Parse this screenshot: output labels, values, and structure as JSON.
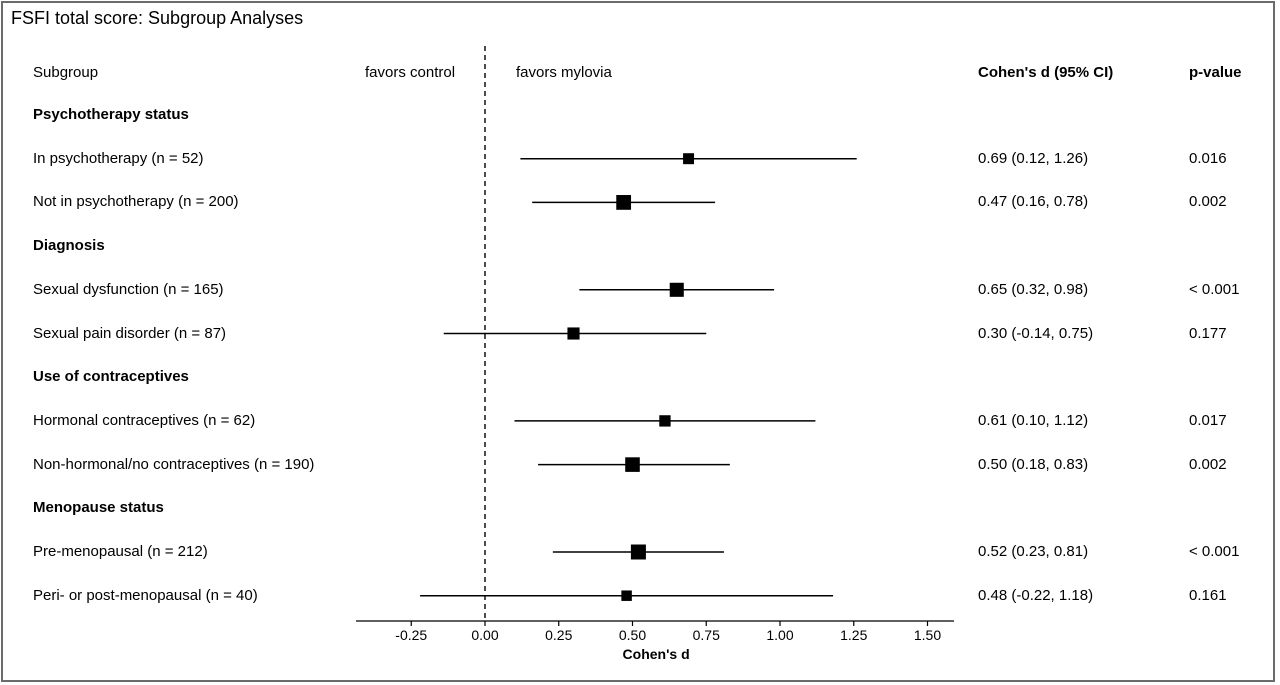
{
  "title": "FSFI total score: Subgroup Analyses",
  "headers": {
    "subgroup": "Subgroup",
    "favors_left": "favors control",
    "favors_right": "favors mylovia",
    "estimate": "Cohen's d (95% CI)",
    "pvalue": "p-value"
  },
  "chart_data": {
    "type": "forest",
    "xlabel": "Cohen's d",
    "xlim": [
      -0.45,
      1.6
    ],
    "reference_line": 0,
    "ticks": [
      -0.25,
      0.0,
      0.25,
      0.5,
      0.75,
      1.0,
      1.25,
      1.5
    ],
    "tick_labels": [
      "-0.25",
      "0.00",
      "0.25",
      "0.50",
      "0.75",
      "1.00",
      "1.25",
      "1.50"
    ],
    "rows": [
      {
        "kind": "group",
        "label": "Psychotherapy status"
      },
      {
        "kind": "item",
        "label": "In psychotherapy (n = 52)",
        "n": 52,
        "d": 0.69,
        "lo": 0.12,
        "hi": 1.26,
        "ci_text": "0.69 (0.12, 1.26)",
        "p": "0.016"
      },
      {
        "kind": "item",
        "label": "Not in psychotherapy (n = 200)",
        "n": 200,
        "d": 0.47,
        "lo": 0.16,
        "hi": 0.78,
        "ci_text": "0.47 (0.16, 0.78)",
        "p": "0.002"
      },
      {
        "kind": "group",
        "label": "Diagnosis"
      },
      {
        "kind": "item",
        "label": "Sexual dysfunction (n = 165)",
        "n": 165,
        "d": 0.65,
        "lo": 0.32,
        "hi": 0.98,
        "ci_text": "0.65 (0.32, 0.98)",
        "p": "< 0.001"
      },
      {
        "kind": "item",
        "label": "Sexual pain disorder (n = 87)",
        "n": 87,
        "d": 0.3,
        "lo": -0.14,
        "hi": 0.75,
        "ci_text": "0.30 (-0.14, 0.75)",
        "p": "0.177"
      },
      {
        "kind": "group",
        "label": "Use of contraceptives"
      },
      {
        "kind": "item",
        "label": "Hormonal contraceptives (n = 62)",
        "n": 62,
        "d": 0.61,
        "lo": 0.1,
        "hi": 1.12,
        "ci_text": "0.61 (0.10, 1.12)",
        "p": "0.017"
      },
      {
        "kind": "item",
        "label": "Non-hormonal/no contraceptives (n = 190)",
        "n": 190,
        "d": 0.5,
        "lo": 0.18,
        "hi": 0.83,
        "ci_text": "0.50 (0.18, 0.83)",
        "p": "0.002"
      },
      {
        "kind": "group",
        "label": "Menopause status"
      },
      {
        "kind": "item",
        "label": "Pre-menopausal (n = 212)",
        "n": 212,
        "d": 0.52,
        "lo": 0.23,
        "hi": 0.81,
        "ci_text": "0.52 (0.23, 0.81)",
        "p": "< 0.001"
      },
      {
        "kind": "item",
        "label": "Peri- or post-menopausal (n = 40)",
        "n": 40,
        "d": 0.48,
        "lo": -0.22,
        "hi": 1.18,
        "ci_text": "0.48 (-0.22, 1.18)",
        "p": "0.161"
      }
    ]
  }
}
